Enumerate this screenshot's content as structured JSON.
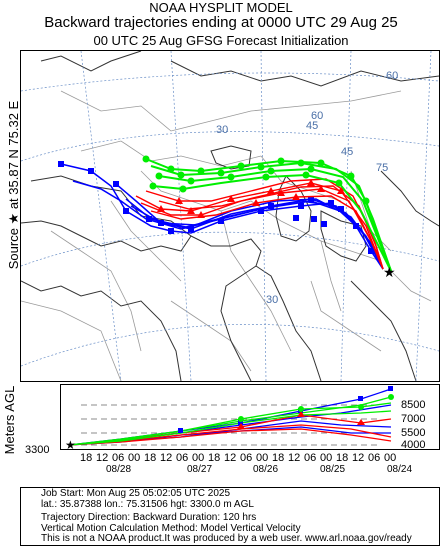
{
  "header": {
    "line1": "NOAA HYSPLIT MODEL",
    "line2": "Backward trajectories ending at 0000 UTC 29 Aug 25",
    "line3": "00 UTC 25 Aug    GFSG  Forecast Initialization"
  },
  "side_label": "Source ★ at   35.87 N   75.32 E",
  "vert_label": "Meters AGL",
  "map": {
    "lat_labels": [
      "60",
      "45",
      "30",
      "75",
      "60",
      "45",
      "30"
    ],
    "land_color": "#ffffff",
    "grid_color": "#6a8fc7",
    "source_label": "★"
  },
  "chart_data": {
    "type": "line",
    "title": "",
    "ylabel": "Meters AGL",
    "source_height": "3300",
    "height_levels": [
      "8500",
      "7000",
      "5500",
      "4000"
    ],
    "x_ticks": [
      "18",
      "12",
      "06",
      "00",
      "18",
      "12",
      "06",
      "00",
      "18",
      "12",
      "06",
      "00",
      "18",
      "12",
      "06",
      "00",
      "18",
      "12",
      "06",
      "00"
    ],
    "date_labels": [
      "08/28",
      "08/27",
      "08/26",
      "08/25",
      "08/24"
    ],
    "series_colors": [
      "#0000ff",
      "#ff0000",
      "#00ee00"
    ]
  },
  "info": {
    "job_start": "Job Start: Mon Aug 25 05:02:05 UTC 2025",
    "location": "lat.: 35.87388   lon.: 75.31506   hgt: 3300.0 m AGL",
    "direction": "Trajectory Direction: Backward        Duration: 120 hrs",
    "vertical": "Vertical Motion Calculation Method: Model Vertical Velocity",
    "disclaimer": "This is not a NOAA product.It was produced by a web user. www.arl.noaa.gov/ready"
  }
}
